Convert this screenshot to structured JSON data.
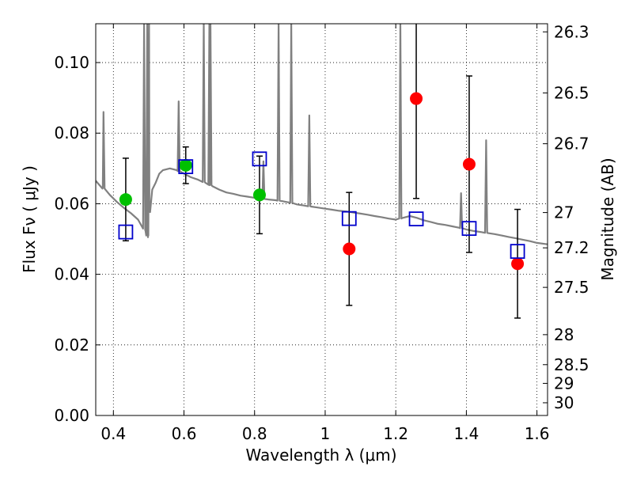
{
  "chart_data": {
    "type": "scatter",
    "xlabel": "Wavelength  λ (μm)",
    "ylabel": "Flux  Fν  ( μJy )",
    "ylabel_right": "Magnitude (AB)",
    "xlim": [
      0.35,
      1.63
    ],
    "ylim": [
      0.0,
      0.111
    ],
    "grid": true,
    "x_ticks": [
      0.4,
      0.6,
      0.8,
      1.0,
      1.2,
      1.4,
      1.6
    ],
    "x_tick_labels": [
      "0.4",
      "0.6",
      "0.8",
      "1",
      "1.2",
      "1.4",
      "1.6"
    ],
    "y_ticks": [
      0.0,
      0.02,
      0.04,
      0.06,
      0.08,
      0.1
    ],
    "y_tick_labels": [
      "0.00",
      "0.02",
      "0.04",
      "0.06",
      "0.08",
      "0.10"
    ],
    "right_ticks": [
      {
        "flux": 0.1087,
        "label": "26.3"
      },
      {
        "flux": 0.0914,
        "label": "26.5"
      },
      {
        "flux": 0.077,
        "label": "26.7"
      },
      {
        "flux": 0.0575,
        "label": "27"
      },
      {
        "flux": 0.0475,
        "label": "27.2"
      },
      {
        "flux": 0.0363,
        "label": "27.5"
      },
      {
        "flux": 0.0229,
        "label": "28"
      },
      {
        "flux": 0.0144,
        "label": "28.5"
      },
      {
        "flux": 0.0091,
        "label": "29"
      },
      {
        "flux": 0.0036,
        "label": "30"
      }
    ],
    "series": [
      {
        "marker": "circle",
        "color": "#00c000",
        "points": [
          {
            "x": 0.435,
            "y": 0.0612,
            "err": 0.0117
          },
          {
            "x": 0.605,
            "y": 0.0709,
            "err": 0.0052
          },
          {
            "x": 0.814,
            "y": 0.0625,
            "err": 0.011
          }
        ]
      },
      {
        "marker": "circle",
        "color": "#ff0000",
        "points": [
          {
            "x": 1.068,
            "y": 0.0472,
            "err": 0.016
          },
          {
            "x": 1.258,
            "y": 0.0898,
            "err": 0.0283
          },
          {
            "x": 1.408,
            "y": 0.0712,
            "err": 0.025
          },
          {
            "x": 1.545,
            "y": 0.043,
            "err": 0.0154
          }
        ]
      },
      {
        "marker": "square-open",
        "color": "#0000cc",
        "points": [
          {
            "x": 0.435,
            "y": 0.052
          },
          {
            "x": 0.605,
            "y": 0.0705
          },
          {
            "x": 0.814,
            "y": 0.0727
          },
          {
            "x": 1.068,
            "y": 0.0558
          },
          {
            "x": 1.258,
            "y": 0.0557
          },
          {
            "x": 1.408,
            "y": 0.053
          },
          {
            "x": 1.545,
            "y": 0.0465
          }
        ]
      }
    ],
    "model_spectrum": {
      "color": "#808080",
      "points": [
        [
          0.35,
          0.0665
        ],
        [
          0.37,
          0.0645
        ],
        [
          0.39,
          0.0625
        ],
        [
          0.41,
          0.0605
        ],
        [
          0.43,
          0.0588
        ],
        [
          0.45,
          0.0573
        ],
        [
          0.47,
          0.0555
        ],
        [
          0.49,
          0.0525
        ],
        [
          0.498,
          0.0505
        ],
        [
          0.502,
          0.06
        ],
        [
          0.51,
          0.064
        ],
        [
          0.52,
          0.066
        ],
        [
          0.53,
          0.0685
        ],
        [
          0.54,
          0.0695
        ],
        [
          0.56,
          0.07
        ],
        [
          0.58,
          0.0695
        ],
        [
          0.6,
          0.0685
        ],
        [
          0.62,
          0.0675
        ],
        [
          0.64,
          0.0668
        ],
        [
          0.66,
          0.066
        ],
        [
          0.68,
          0.065
        ],
        [
          0.7,
          0.064
        ],
        [
          0.72,
          0.0632
        ],
        [
          0.74,
          0.0628
        ],
        [
          0.76,
          0.0623
        ],
        [
          0.78,
          0.062
        ],
        [
          0.8,
          0.0617
        ],
        [
          0.82,
          0.0614
        ],
        [
          0.84,
          0.0612
        ],
        [
          0.86,
          0.061
        ],
        [
          0.88,
          0.0607
        ],
        [
          0.9,
          0.0603
        ],
        [
          0.92,
          0.0598
        ],
        [
          0.94,
          0.0595
        ],
        [
          0.96,
          0.0592
        ],
        [
          0.98,
          0.0589
        ],
        [
          1.0,
          0.0586
        ],
        [
          1.02,
          0.0583
        ],
        [
          1.04,
          0.058
        ],
        [
          1.06,
          0.0578
        ],
        [
          1.08,
          0.0575
        ],
        [
          1.1,
          0.0572
        ],
        [
          1.12,
          0.0569
        ],
        [
          1.14,
          0.0565
        ],
        [
          1.16,
          0.0562
        ],
        [
          1.18,
          0.0558
        ],
        [
          1.2,
          0.0555
        ],
        [
          1.22,
          0.056
        ],
        [
          1.24,
          0.0565
        ],
        [
          1.26,
          0.056
        ],
        [
          1.28,
          0.0553
        ],
        [
          1.3,
          0.0548
        ],
        [
          1.32,
          0.0543
        ],
        [
          1.34,
          0.054
        ],
        [
          1.36,
          0.0536
        ],
        [
          1.38,
          0.0532
        ],
        [
          1.4,
          0.0527
        ],
        [
          1.42,
          0.0523
        ],
        [
          1.44,
          0.052
        ],
        [
          1.46,
          0.0517
        ],
        [
          1.48,
          0.0514
        ],
        [
          1.5,
          0.051
        ],
        [
          1.52,
          0.0506
        ],
        [
          1.54,
          0.0502
        ],
        [
          1.56,
          0.0498
        ],
        [
          1.58,
          0.0494
        ],
        [
          1.6,
          0.0489
        ],
        [
          1.63,
          0.0485
        ]
      ],
      "emission_lines": [
        {
          "x": 0.372,
          "peak": 0.086
        },
        {
          "x": 0.487,
          "peak": 0.111
        },
        {
          "x": 0.496,
          "peak": 0.111
        },
        {
          "x": 0.501,
          "peak": 0.111
        },
        {
          "x": 0.585,
          "peak": 0.089
        },
        {
          "x": 0.656,
          "peak": 0.111
        },
        {
          "x": 0.672,
          "peak": 0.111
        },
        {
          "x": 0.675,
          "peak": 0.111
        },
        {
          "x": 0.825,
          "peak": 0.072
        },
        {
          "x": 0.868,
          "peak": 0.111
        },
        {
          "x": 0.904,
          "peak": 0.111
        },
        {
          "x": 0.955,
          "peak": 0.085
        },
        {
          "x": 1.213,
          "peak": 0.111
        },
        {
          "x": 1.385,
          "peak": 0.063
        },
        {
          "x": 1.456,
          "peak": 0.078
        }
      ]
    }
  }
}
